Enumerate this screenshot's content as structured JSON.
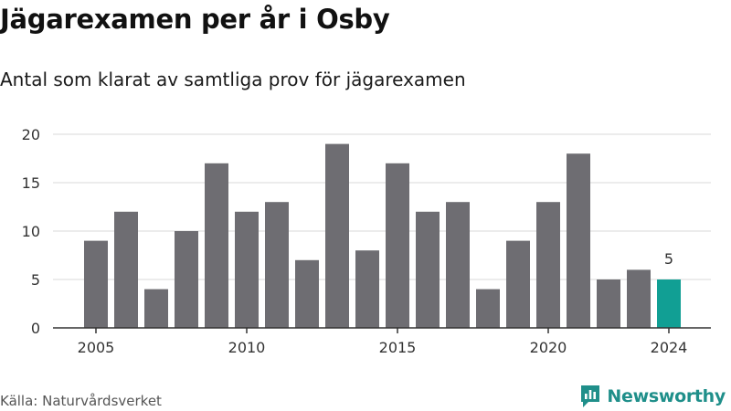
{
  "title": "Jägarexamen per år i Osby",
  "subtitle": "Antal som klarat av samtliga prov för jägarexamen",
  "source": "Källa: Naturvårdsverket",
  "brand": {
    "name": "Newsworthy",
    "icon": "newsworthy-logo-icon"
  },
  "colors": {
    "bar": "#6e6d72",
    "highlight": "#119f94",
    "grid": "#d9d9d9",
    "axis": "#333333"
  },
  "chart_data": {
    "type": "bar",
    "categories": [
      "2005",
      "2006",
      "2007",
      "2008",
      "2009",
      "2010",
      "2011",
      "2012",
      "2013",
      "2014",
      "2015",
      "2016",
      "2017",
      "2018",
      "2019",
      "2020",
      "2021",
      "2022",
      "2023",
      "2024"
    ],
    "values": [
      9,
      12,
      4,
      10,
      17,
      12,
      13,
      7,
      19,
      8,
      17,
      12,
      13,
      4,
      9,
      13,
      18,
      5,
      6,
      5
    ],
    "x_tick_labels": [
      "2005",
      "2010",
      "2015",
      "2020",
      "2024"
    ],
    "y_ticks": [
      0,
      5,
      10,
      15,
      20
    ],
    "ylim": [
      0,
      20
    ],
    "highlight_category": "2024",
    "data_labels": [
      {
        "category": "2024",
        "text": "5"
      }
    ],
    "grid": true,
    "xlabel": "",
    "ylabel": ""
  }
}
